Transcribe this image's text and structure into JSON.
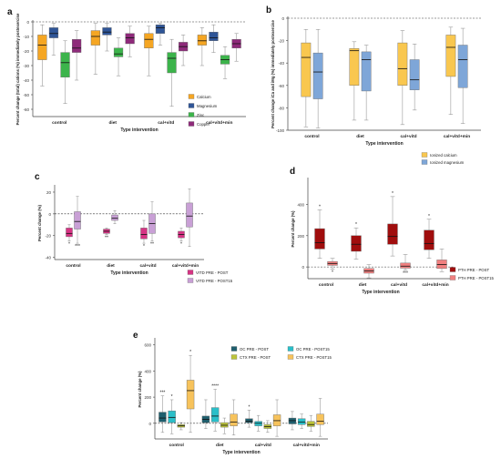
{
  "chart_data": [
    {
      "panel": "a",
      "type": "boxplot",
      "title": "",
      "xlabel": "Type intervention",
      "ylabel": "Percent change (total) cations (%) immediately postexercise",
      "categories": [
        "control",
        "diet",
        "cal+vitd",
        "cal+vitd+min"
      ],
      "ylim": [
        -65,
        0
      ],
      "yticks": [
        "0",
        "-10",
        "-20",
        "-30",
        "-40",
        "-50",
        "-60"
      ],
      "reference_line": 0,
      "legend": "right",
      "series": [
        {
          "name": "Calcium",
          "color": "#F5A623",
          "boxes": [
            [
              -44,
              -26,
              -16,
              -9,
              -2
            ],
            [
              -36,
              -16,
              -10,
              -6,
              -1
            ],
            [
              -37,
              -18,
              -12,
              -8,
              -3
            ],
            [
              -30,
              -16,
              -13,
              -9,
              -4
            ]
          ]
        },
        {
          "name": "Magnesium",
          "color": "#2F5597",
          "boxes": [
            [
              -23,
              -11,
              -8,
              -4,
              -1
            ],
            [
              -20,
              -9,
              -7,
              -4,
              -1
            ],
            [
              -16,
              -8,
              -4,
              -2,
              -1
            ],
            [
              -21,
              -13,
              -11,
              -7,
              -2
            ]
          ]
        },
        {
          "name": "Zinc",
          "color": "#3CB44B",
          "boxes": [
            [
              -56,
              -38,
              -28,
              -21,
              -13
            ],
            [
              -37,
              -24,
              -22,
              -18,
              -11
            ],
            [
              -58,
              -35,
              -25,
              -21,
              -12
            ],
            [
              -39,
              -29,
              -26,
              -23,
              -17
            ]
          ]
        },
        {
          "name": "Copper",
          "color": "#8E2A7A",
          "boxes": [
            [
              -40,
              -21,
              -18,
              -12,
              -6
            ],
            [
              -24,
              -15,
              -11,
              -8,
              -3
            ],
            [
              -30,
              -20,
              -17,
              -14,
              -9
            ],
            [
              -27,
              -18,
              -15,
              -12,
              -8
            ]
          ]
        }
      ]
    },
    {
      "panel": "b",
      "type": "boxplot",
      "title": "",
      "xlabel": "Type intervention",
      "ylabel": "Percent change iCa and iMg (%) immediately postexercise",
      "categories": [
        "control",
        "diet",
        "cal+vitd",
        "cal+vitd+min"
      ],
      "ylim": [
        -100,
        0
      ],
      "yticks": [
        "0",
        "-20",
        "-40",
        "-60",
        "-80",
        "-100"
      ],
      "reference_line": 0,
      "legend": "bottom-right",
      "series": [
        {
          "name": "Ionized calcium",
          "color": "#F9C74F",
          "boxes": [
            [
              -97,
              -70,
              -35,
              -22,
              -10
            ],
            [
              -91,
              -60,
              -29,
              -27,
              -21
            ],
            [
              -95,
              -60,
              -45,
              -22,
              -11
            ],
            [
              -86,
              -52,
              -26,
              -15,
              -8
            ]
          ]
        },
        {
          "name": "Ionized magnesium",
          "color": "#7EA6D8",
          "boxes": [
            [
              -98,
              -72,
              -48,
              -31,
              -10
            ],
            [
              -91,
              -65,
              -37,
              -30,
              -24
            ],
            [
              -82,
              -64,
              -55,
              -37,
              -23
            ],
            [
              -94,
              -62,
              -37,
              -24,
              -9
            ]
          ]
        }
      ]
    },
    {
      "panel": "c",
      "type": "boxplot",
      "title": "",
      "xlabel": "Type intervention",
      "ylabel": "Percent change (%)",
      "categories": [
        "control",
        "diet",
        "cal+vitd",
        "cal+vitd+min"
      ],
      "ylim": [
        -42,
        25
      ],
      "yticks": [
        "20",
        "0",
        "-20",
        "-40"
      ],
      "reference_line": 0,
      "legend": "bottom-right",
      "annotations": [
        {
          "category": 0,
          "series": 0,
          "text": "*"
        },
        {
          "category": 0,
          "series": 1,
          "text": "***"
        },
        {
          "category": 1,
          "series": 0,
          "text": "**"
        },
        {
          "category": 2,
          "series": 0,
          "text": "*"
        },
        {
          "category": 2,
          "series": 1,
          "text": "**"
        },
        {
          "category": 3,
          "series": 0,
          "text": "*"
        }
      ],
      "series": [
        {
          "name": "VITD PRE - POST",
          "color": "#D63384",
          "boxes": [
            [
              -25,
              -21,
              -18,
              -13,
              -10
            ],
            [
              -19,
              -18,
              -16,
              -14,
              -13
            ],
            [
              -27,
              -23,
              -19,
              -13,
              -6
            ],
            [
              -25,
              -22,
              -19,
              -16,
              -13
            ]
          ]
        },
        {
          "name": "VITD PRE - POST15",
          "color": "#C9A0D6",
          "boxes": [
            [
              -27,
              -14,
              -7,
              2,
              16
            ],
            [
              -9,
              -6,
              -4,
              -1,
              3
            ],
            [
              -25,
              -18,
              -9,
              0,
              11
            ],
            [
              -30,
              -12,
              -2,
              10,
              23
            ]
          ]
        }
      ]
    },
    {
      "panel": "d",
      "type": "boxplot",
      "title": "",
      "xlabel": "Type intervention",
      "ylabel": "Percent change (%)",
      "categories": [
        "control",
        "diet",
        "cal+vitd",
        "cal+vitd+min"
      ],
      "ylim": [
        -75,
        560
      ],
      "yticks": [
        "400",
        "200",
        "0"
      ],
      "reference_line": 0,
      "legend": "bottom-right",
      "annotations": [
        {
          "category": 0,
          "series": 0,
          "text": "*"
        },
        {
          "category": 0,
          "series": 1,
          "text": "*"
        },
        {
          "category": 1,
          "series": 0,
          "text": "*"
        },
        {
          "category": 2,
          "series": 0,
          "text": "*"
        },
        {
          "category": 2,
          "series": 1,
          "text": "***"
        },
        {
          "category": 3,
          "series": 0,
          "text": "*"
        }
      ],
      "series": [
        {
          "name": "PTH PRE - POST",
          "color": "#A00D0D",
          "boxes": [
            [
              55,
              115,
              155,
              245,
              365
            ],
            [
              50,
              100,
              145,
              200,
              250
            ],
            [
              70,
              145,
              195,
              275,
              450
            ],
            [
              55,
              110,
              150,
              235,
              305
            ]
          ]
        },
        {
          "name": "PTH PRE - POST15",
          "color": "#F08080",
          "boxes": [
            [
              -15,
              10,
              22,
              35,
              55
            ],
            [
              -70,
              -40,
              -25,
              -10,
              15
            ],
            [
              -20,
              -8,
              5,
              25,
              80
            ],
            [
              -30,
              -10,
              15,
              45,
              115
            ]
          ]
        }
      ]
    },
    {
      "panel": "e",
      "type": "boxplot",
      "title": "",
      "xlabel": "Type intervention",
      "ylabel": "Percent change (%)",
      "categories": [
        "control",
        "diet",
        "cal+vitd",
        "cal+vitd+min"
      ],
      "ylim": [
        -120,
        640
      ],
      "yticks": [
        "600",
        "400",
        "200",
        "0"
      ],
      "reference_line": 0,
      "legend": "top-right",
      "annotations": [
        {
          "category": 0,
          "series": 0,
          "text": "***"
        },
        {
          "category": 0,
          "series": 1,
          "text": "*"
        },
        {
          "category": 0,
          "series": 3,
          "text": "*"
        },
        {
          "category": 1,
          "series": 1,
          "text": "****"
        },
        {
          "category": 2,
          "series": 0,
          "text": "*"
        }
      ],
      "series": [
        {
          "name": "OC PRE - POST",
          "color": "#1F5F6E",
          "boxes": [
            [
              -70,
              10,
              40,
              85,
              210
            ],
            [
              -40,
              5,
              30,
              55,
              180
            ],
            [
              -30,
              5,
              15,
              35,
              100
            ],
            [
              -50,
              -5,
              20,
              40,
              90
            ]
          ]
        },
        {
          "name": "OC PRE - POST15",
          "color": "#2ABFC9",
          "boxes": [
            [
              -80,
              5,
              45,
              95,
              180
            ],
            [
              -60,
              10,
              55,
              120,
              260
            ],
            [
              -60,
              -20,
              0,
              15,
              60
            ],
            [
              -40,
              -10,
              10,
              35,
              70
            ]
          ]
        },
        {
          "name": "CTX PRE - POST",
          "color": "#BCC43A",
          "boxes": [
            [
              -50,
              -30,
              -20,
              -10,
              5
            ],
            [
              -80,
              -30,
              -15,
              5,
              40
            ],
            [
              -70,
              -40,
              -25,
              -10,
              20
            ],
            [
              -60,
              -25,
              -10,
              15,
              60
            ]
          ]
        },
        {
          "name": "CTX PRE - POST15",
          "color": "#F7C35C",
          "boxes": [
            [
              -70,
              110,
              250,
              330,
              520
            ],
            [
              -90,
              -20,
              10,
              70,
              180
            ],
            [
              -100,
              -20,
              20,
              65,
              180
            ],
            [
              -100,
              -10,
              15,
              70,
              190
            ]
          ]
        }
      ]
    }
  ]
}
